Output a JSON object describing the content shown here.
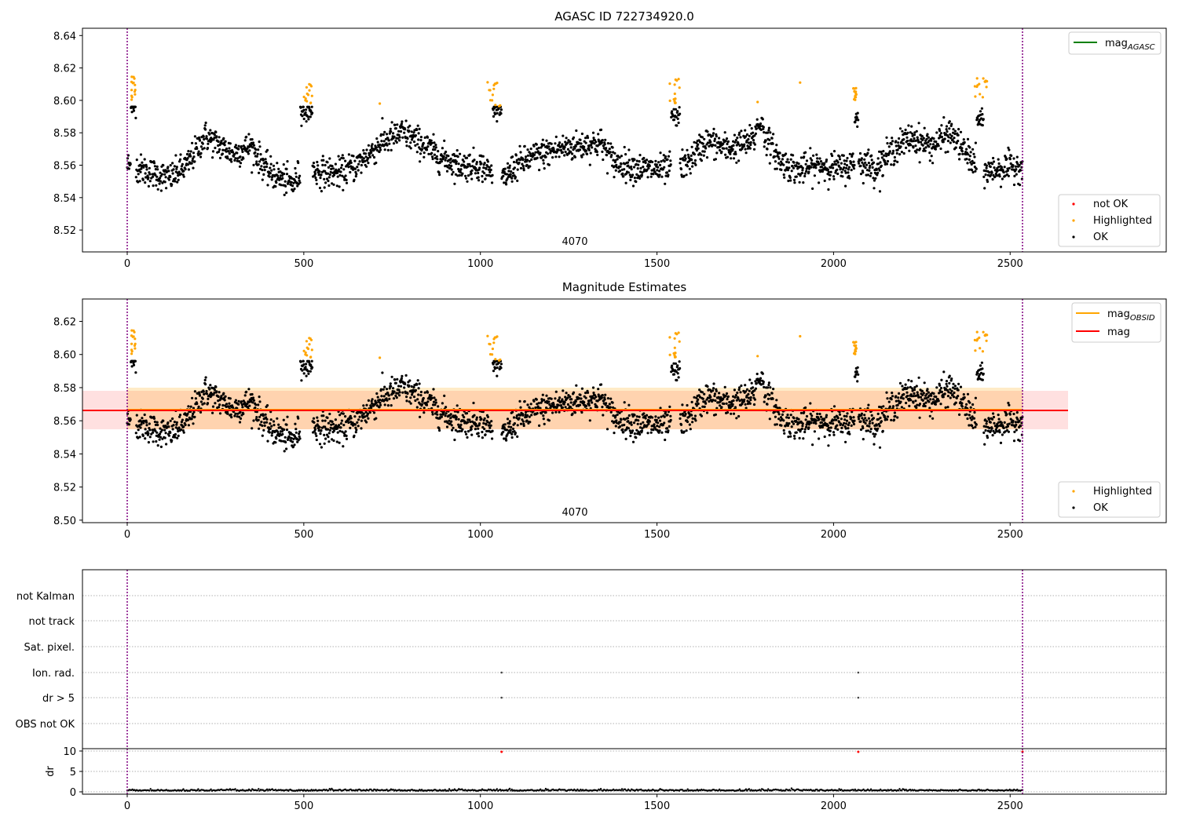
{
  "chart_data": [
    {
      "type": "scatter",
      "title": "AGASC ID 722734920.0",
      "xlim": [
        -125,
        2940
      ],
      "ylim": [
        8.5065,
        8.6445
      ],
      "xticks": [
        "0",
        "500",
        "1000",
        "1500",
        "2000",
        "2500"
      ],
      "yticks": [
        "8.52",
        "8.54",
        "8.56",
        "8.58",
        "8.60",
        "8.62",
        "8.64"
      ],
      "obsid_label": "4070",
      "obsid_bounds": [
        0,
        2535
      ],
      "series": [
        {
          "name": "OK",
          "color": "#000000",
          "note": "noisy magnitude time series, ~2500 points, 8.535-8.596"
        },
        {
          "name": "Highlighted",
          "color": "#ffa500",
          "x_clusters": [
            15,
            520,
            1045,
            1555,
            1910,
            2060,
            2420
          ]
        },
        {
          "name": "not OK",
          "color": "#ff0000",
          "count": 0
        }
      ],
      "legend_lines": [
        {
          "name": "mag_AGASC",
          "label": "mag",
          "sub": "AGASC",
          "color": "#008000"
        }
      ],
      "legend_points": [
        "not OK",
        "Highlighted",
        "OK"
      ]
    },
    {
      "type": "scatter",
      "title": "Magnitude Estimates",
      "xlim": [
        -125,
        2940
      ],
      "ylim": [
        8.4985,
        8.6335
      ],
      "xticks": [
        "0",
        "500",
        "1000",
        "1500",
        "2000",
        "2500"
      ],
      "yticks": [
        "8.50",
        "8.52",
        "8.54",
        "8.56",
        "8.58",
        "8.60",
        "8.62"
      ],
      "obsid_label": "4070",
      "mag_obsid": 8.566,
      "mag_obsid_band": [
        8.554,
        8.58
      ],
      "mag": 8.5655,
      "mag_band": [
        8.5545,
        8.5775
      ],
      "series": [
        {
          "name": "OK",
          "color": "#000000"
        },
        {
          "name": "Highlighted",
          "color": "#ffa500"
        }
      ],
      "legend_lines": [
        {
          "name": "mag_OBSID",
          "label": "mag",
          "sub": "OBSID",
          "color": "#ffa500"
        },
        {
          "name": "mag",
          "label": "mag",
          "sub": "",
          "color": "#ff0000"
        }
      ],
      "legend_points": [
        "Highlighted",
        "OK"
      ]
    },
    {
      "type": "scatter",
      "title": "",
      "flag_labels": [
        "not Kalman",
        "not track",
        "Sat. pixel.",
        "Ion. rad.",
        "dr > 5",
        "OBS not OK"
      ],
      "flag_points": [
        {
          "flag": "Ion. rad.",
          "x": [
            1060,
            2070
          ]
        },
        {
          "flag": "dr > 5",
          "x": [
            1060,
            2070
          ]
        }
      ],
      "dr": {
        "ylabel": "dr",
        "yticks": [
          "0",
          "5",
          "10"
        ],
        "ylim": [
          -0.5,
          10.5
        ],
        "outliers_x": [
          1060,
          2070,
          2535
        ],
        "typical_range": [
          0.0,
          0.8
        ]
      },
      "xticks": [
        "0",
        "500",
        "1000",
        "1500",
        "2000",
        "2500"
      ]
    }
  ]
}
